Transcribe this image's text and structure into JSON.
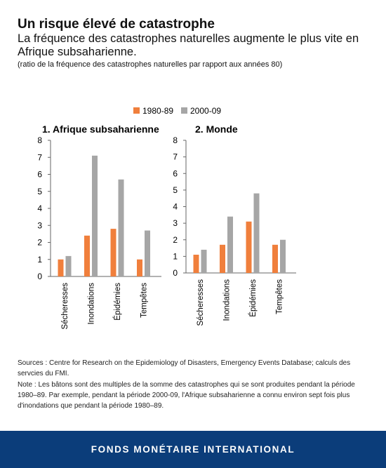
{
  "header": {
    "title": "Un risque élevé de catastrophe",
    "subtitle": "La fréquence des catastrophes naturelles augmente le plus vite en Afrique subsaharienne.",
    "unit_note": "(ratio de la fréquence des catastrophes naturelles par rapport aux années 80)"
  },
  "chart_data": [
    {
      "type": "bar",
      "title": "1. Afrique subsaharienne",
      "categories": [
        "Sécheresses",
        "Inondations",
        "Épidémies",
        "Tempêtes"
      ],
      "series": [
        {
          "name": "1980-89",
          "values": [
            1.0,
            2.4,
            2.8,
            1.0
          ],
          "color": "#f07f3c"
        },
        {
          "name": "2000-09",
          "values": [
            1.2,
            7.1,
            5.7,
            2.7
          ],
          "color": "#a6a6a6"
        }
      ],
      "yticks": [
        "0",
        "1",
        "2",
        "3",
        "4",
        "5",
        "6",
        "7",
        "8"
      ],
      "ylim": [
        0,
        8
      ],
      "legend": "top-center",
      "grid": false
    },
    {
      "type": "bar",
      "title": "2. Monde",
      "categories": [
        "Sécheresses",
        "Inondations",
        "Épidémies",
        "Tempêtes"
      ],
      "series": [
        {
          "name": "1980-89",
          "values": [
            1.1,
            1.7,
            3.1,
            1.7
          ],
          "color": "#f07f3c"
        },
        {
          "name": "2000-09",
          "values": [
            1.4,
            3.4,
            4.8,
            2.0
          ],
          "color": "#a6a6a6"
        }
      ],
      "yticks": [
        "0",
        "1",
        "2",
        "3",
        "4",
        "5",
        "6",
        "7",
        "8"
      ],
      "ylim": [
        0,
        8
      ],
      "legend": "top-center",
      "grid": false
    }
  ],
  "legend": [
    {
      "label": "1980-89",
      "color": "#f07f3c"
    },
    {
      "label": "2000-09",
      "color": "#a6a6a6"
    }
  ],
  "sources": {
    "sources_text": "Sources : Centre for Research on the Epidemiology of Disasters, Emergency Events Database; calculs des servcies du FMI.",
    "note_text": "Note : Les bâtons sont des multiples de la somme des catastrophes qui se sont produites pendant la période 1980–89. Par exemple, pendant la période 2000-09, l'Afrique subsaharienne a connu environ sept fois plus d'inondations que pendant la période 1980–89."
  },
  "footer": {
    "label": "FONDS MONÉTAIRE INTERNATIONAL"
  }
}
